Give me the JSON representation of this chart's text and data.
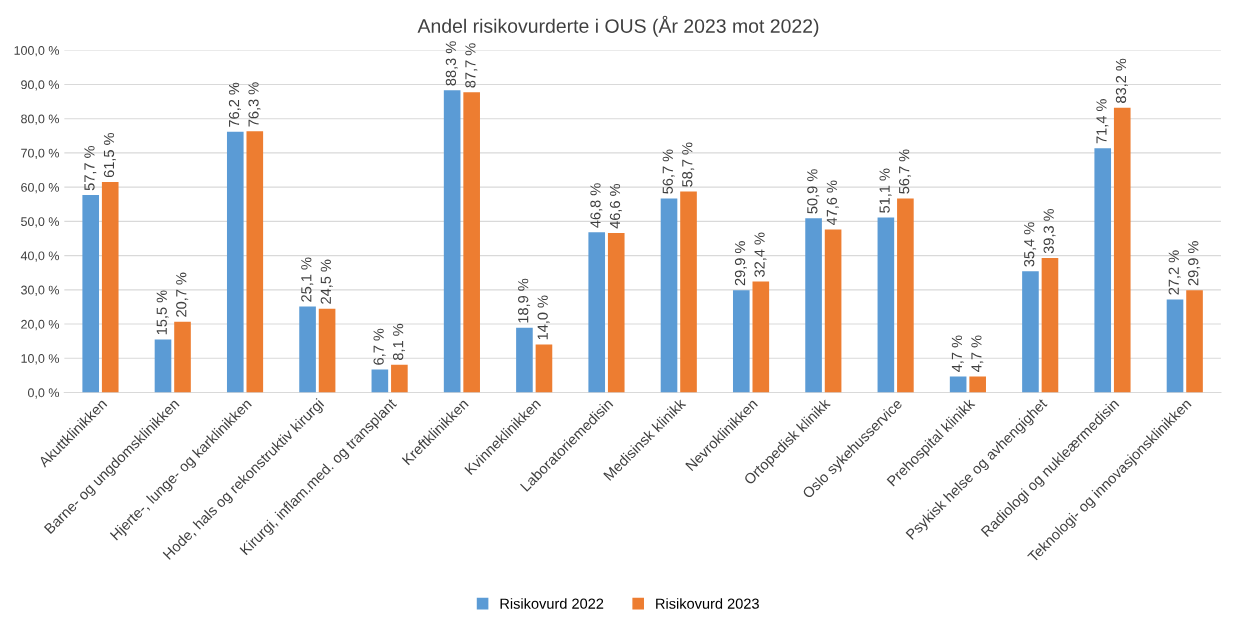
{
  "chart_data": {
    "type": "bar",
    "title": "Andel risikovurderte i OUS (År 2023 mot 2022)",
    "categories": [
      "Akuttklinikken",
      "Barne- og ungdomsklinikken",
      "Hjerte-, lunge- og karklinikken",
      "Hode, hals og rekonstruktiv kirurgi",
      "Kirurgi, inflam.med. og transplant",
      "Kreftklinikken",
      "Kvinneklinikken",
      "Laboratoriemedisin",
      "Medisinsk klinikk",
      "Nevroklinikken",
      "Ortopedisk klinikk",
      "Oslo sykehusservice",
      "Prehospital klinikk",
      "Psykisk helse og avhengighet",
      "Radiologi og nukleærmedisin",
      "Teknologi- og innovasjonsklinikken"
    ],
    "series": [
      {
        "name": "Risikovurd 2022",
        "color": "#5b9bd5",
        "values": [
          57.7,
          15.5,
          76.2,
          25.1,
          6.7,
          88.3,
          18.9,
          46.8,
          56.7,
          29.9,
          50.9,
          51.1,
          4.7,
          35.4,
          71.4,
          27.2
        ],
        "value_labels": [
          "57,7 %",
          "15,5 %",
          "76,2 %",
          "25,1 %",
          "6,7 %",
          "88,3 %",
          "18,9 %",
          "46,8 %",
          "56,7 %",
          "29,9 %",
          "50,9 %",
          "51,1 %",
          "4,7 %",
          "35,4 %",
          "71,4 %",
          "27,2 %"
        ]
      },
      {
        "name": "Risikovurd 2023",
        "color": "#ed7d31",
        "values": [
          61.5,
          20.7,
          76.3,
          24.5,
          8.1,
          87.7,
          14.0,
          46.6,
          58.7,
          32.4,
          47.6,
          56.7,
          4.7,
          39.3,
          83.2,
          29.9
        ],
        "value_labels": [
          "61,5 %",
          "20,7 %",
          "76,3 %",
          "24,5 %",
          "8,1 %",
          "87,7 %",
          "14,0 %",
          "46,6 %",
          "58,7 %",
          "32,4 %",
          "47,6 %",
          "56,7 %",
          "4,7 %",
          "39,3 %",
          "83,2 %",
          "29,9 %"
        ]
      }
    ],
    "ylim": [
      0,
      100
    ],
    "yticks": [
      {
        "value": 0,
        "label": "0,0 %"
      },
      {
        "value": 10,
        "label": "10,0 %"
      },
      {
        "value": 20,
        "label": "20,0 %"
      },
      {
        "value": 30,
        "label": "30,0 %"
      },
      {
        "value": 40,
        "label": "40,0 %"
      },
      {
        "value": 50,
        "label": "50,0 %"
      },
      {
        "value": 60,
        "label": "60,0 %"
      },
      {
        "value": 70,
        "label": "70,0 %"
      },
      {
        "value": 80,
        "label": "80,0 %"
      },
      {
        "value": 90,
        "label": "90,0 %"
      },
      {
        "value": 100,
        "label": "100,0 %"
      }
    ],
    "grid": "y",
    "legend": "bottom"
  }
}
